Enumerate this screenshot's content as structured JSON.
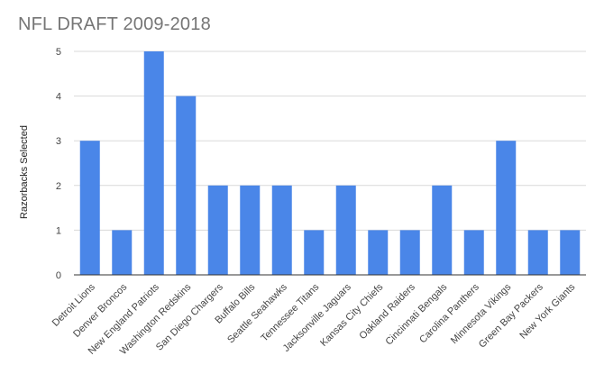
{
  "chart_data": {
    "type": "bar",
    "title": "NFL DRAFT 2009-2018",
    "xlabel": "",
    "ylabel": "Razorbacks Selected",
    "ylim": [
      0,
      5
    ],
    "yticks": [
      0,
      1,
      2,
      3,
      4,
      5
    ],
    "grid": true,
    "bar_color": "#4a86e8",
    "categories": [
      "Detroit Lions",
      "Denver Broncos",
      "New England Patriots",
      "Washington Redskins",
      "San Diego Chargers",
      "Buffalo Bills",
      "Seattle Seahawks",
      "Tennessee Titans",
      "Jacksonville Jaguars",
      "Kansas City Chiefs",
      "Oakland Raiders",
      "Cincinnati Bengals",
      "Carolina Panthers",
      "Minnesota Vikings",
      "Green Bay Packers",
      "New York Giants"
    ],
    "values": [
      3,
      1,
      5,
      4,
      2,
      2,
      2,
      1,
      2,
      1,
      1,
      2,
      1,
      3,
      1,
      1
    ]
  }
}
